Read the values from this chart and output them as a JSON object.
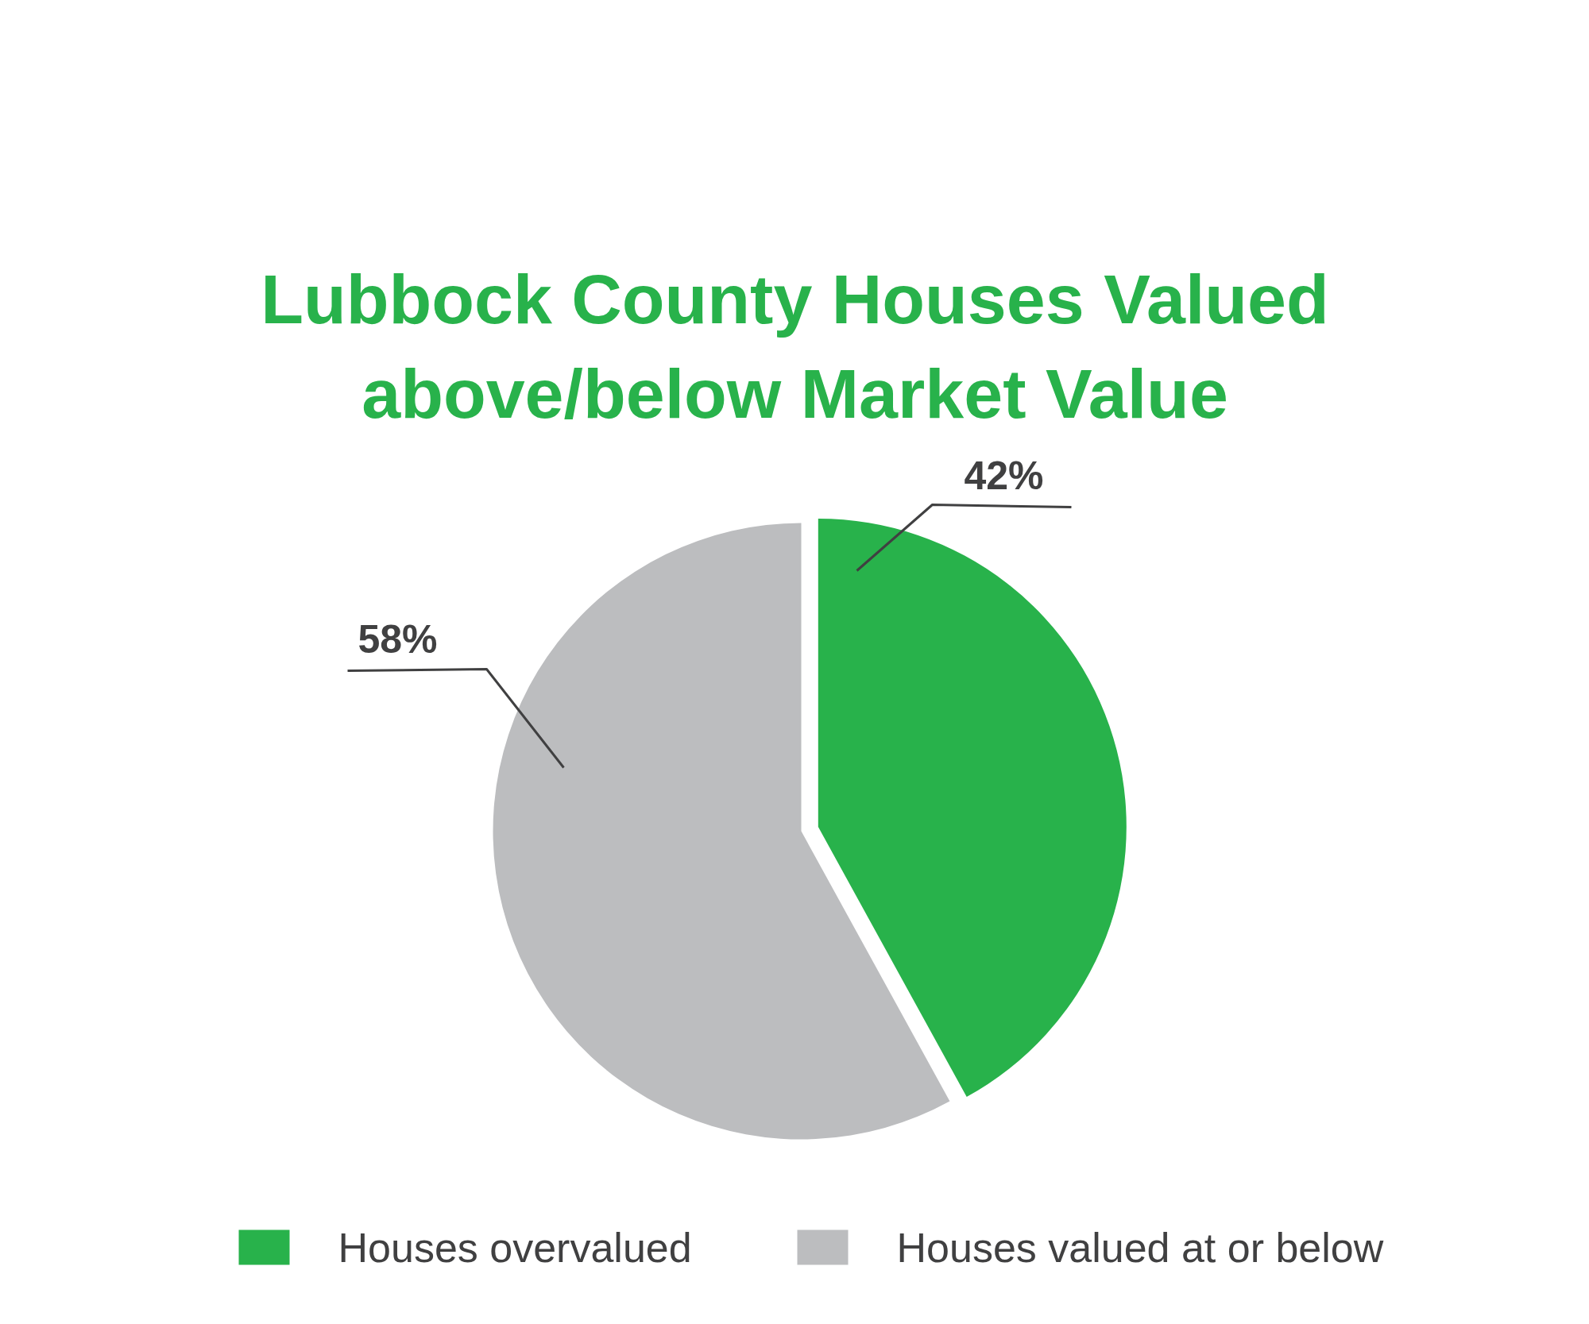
{
  "chart_data": {
    "type": "pie",
    "title": "Lubbock County Houses Valued above/below Market Value",
    "categories": [
      "Houses overvalued",
      "Houses valued at or below"
    ],
    "values": [
      42,
      58
    ],
    "colors": [
      "#28b24b",
      "#bcbdbf"
    ],
    "value_labels": [
      "42%",
      "58%"
    ],
    "legend": "bottom"
  }
}
